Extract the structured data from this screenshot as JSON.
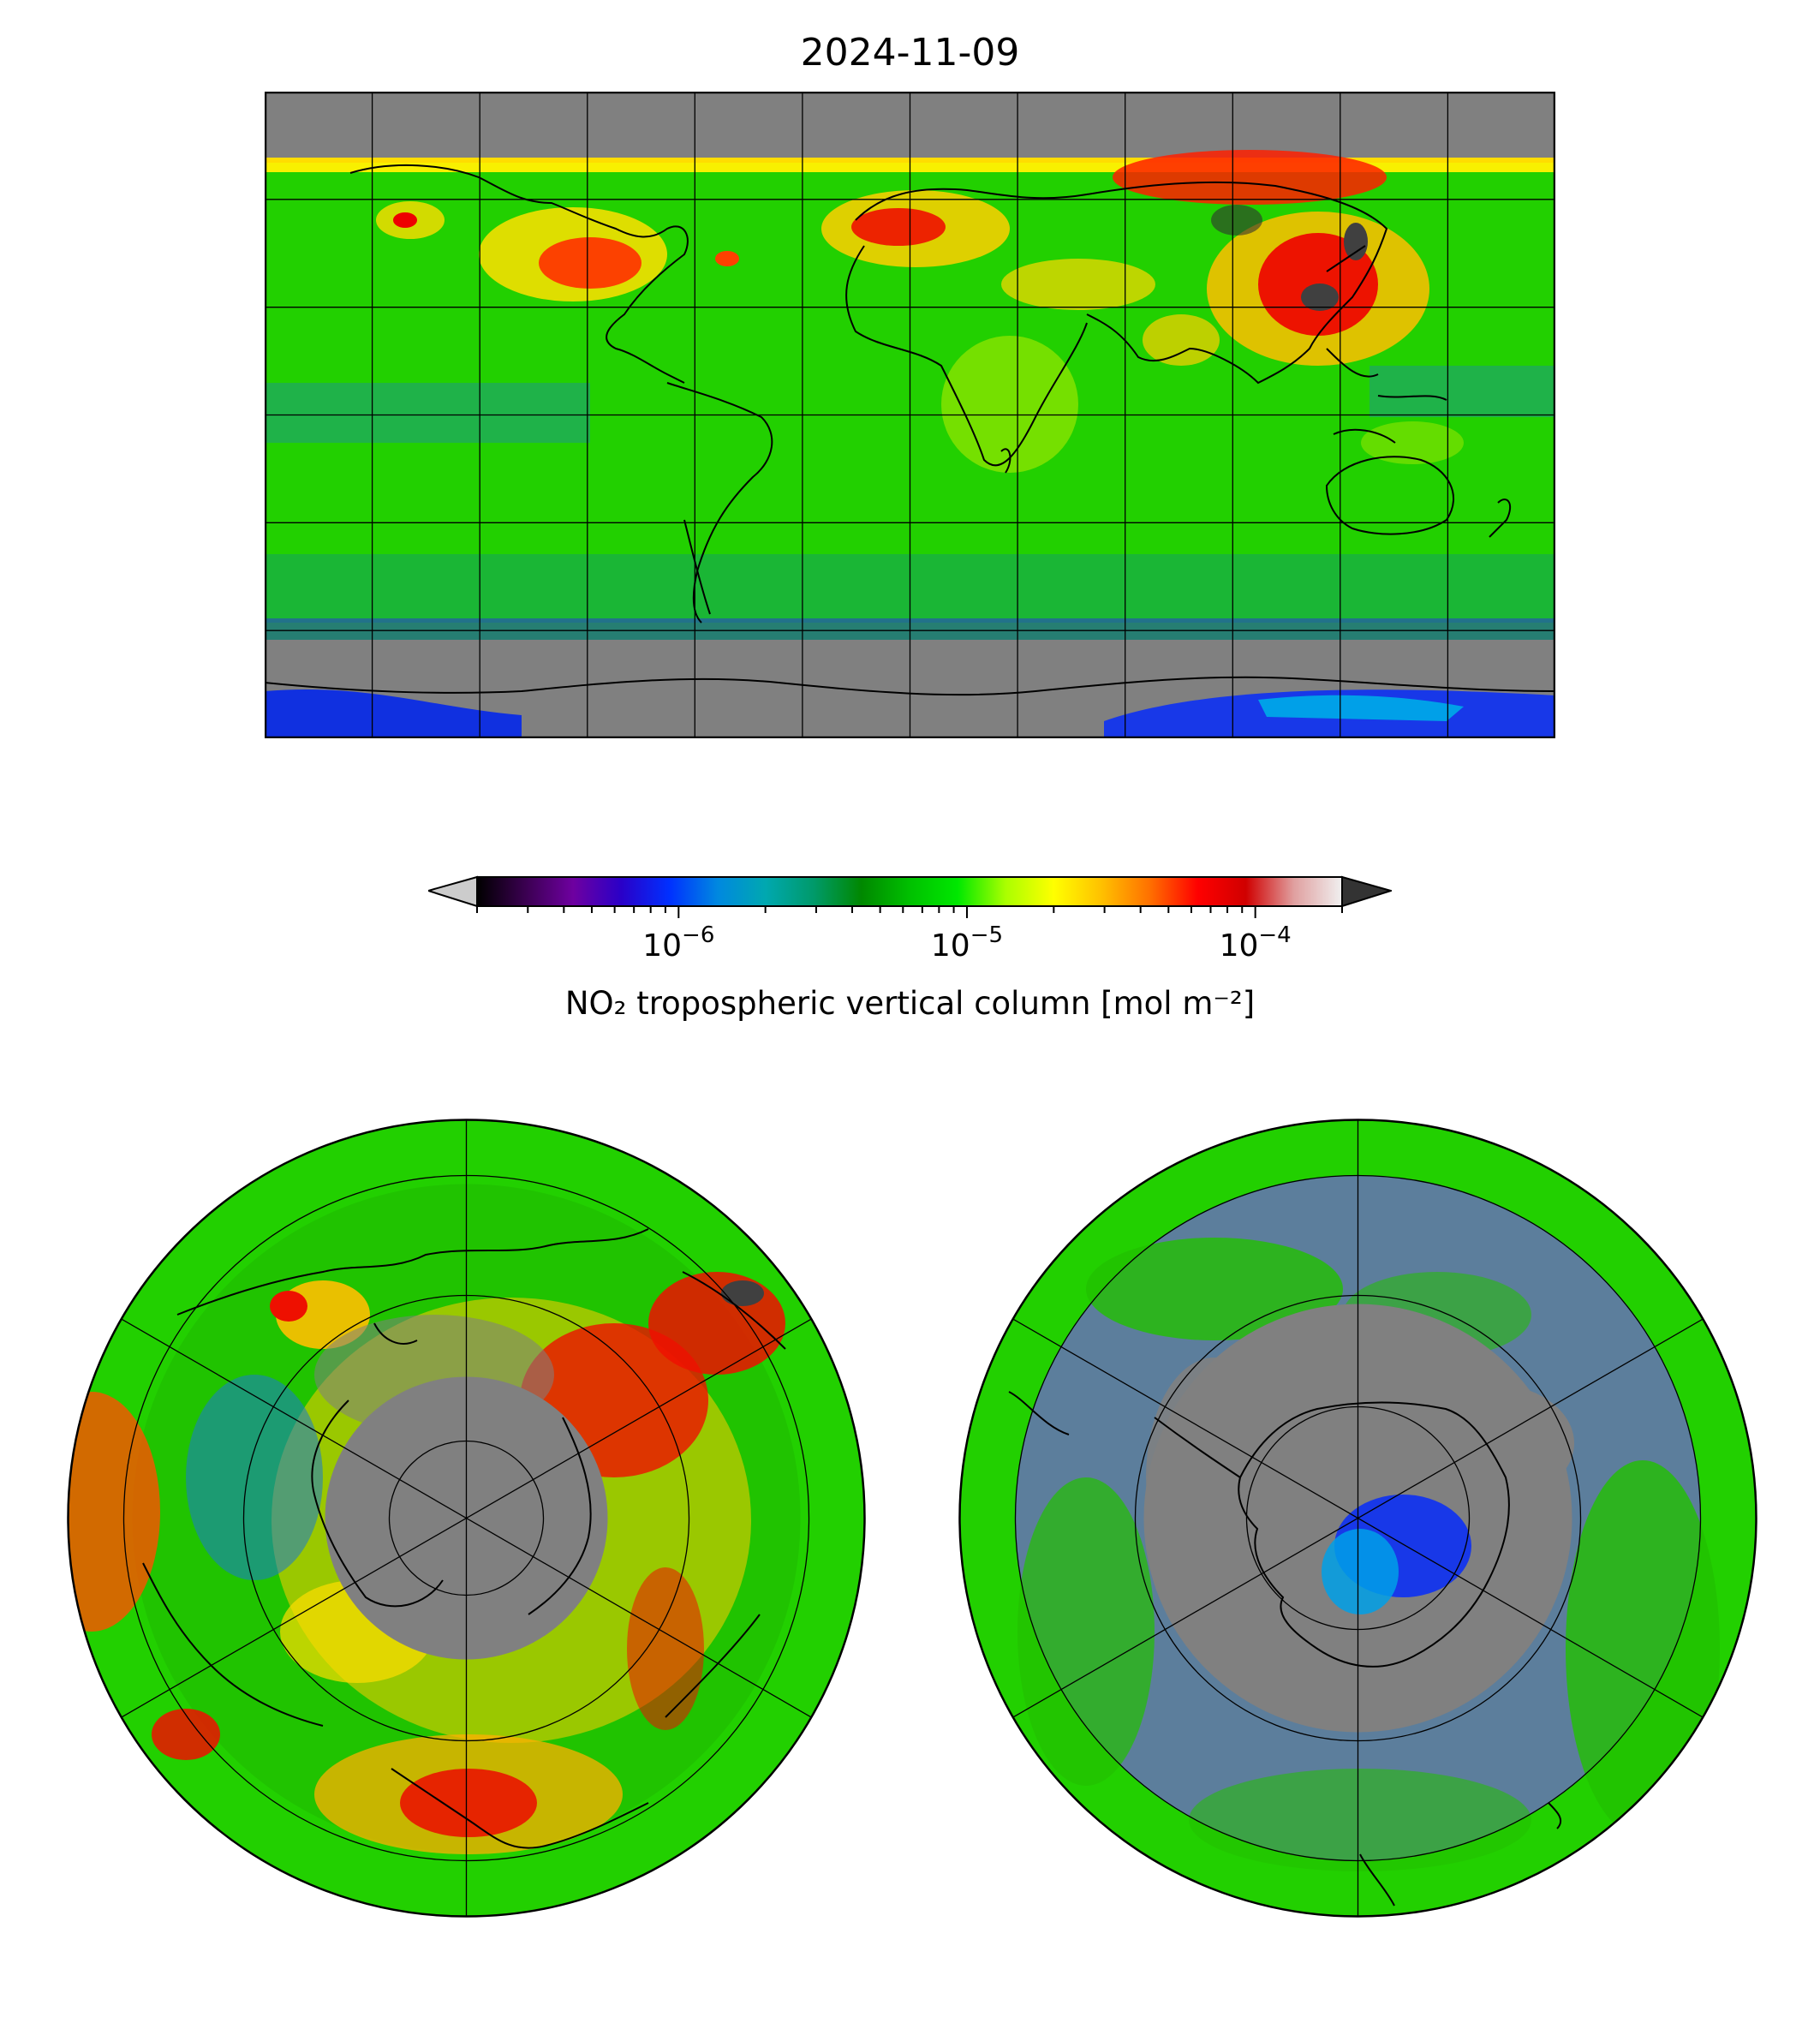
{
  "title": "2024-11-09",
  "colorbar": {
    "label": "NO₂ tropospheric vertical column [mol m⁻²]",
    "scale": "log",
    "range": [
      2e-07,
      0.0002
    ],
    "extend": "both",
    "ticks": [
      {
        "base": "10",
        "exp": "−6",
        "value": 1e-06
      },
      {
        "base": "10",
        "exp": "−5",
        "value": 1e-05
      },
      {
        "base": "10",
        "exp": "−4",
        "value": 0.0001
      }
    ],
    "colors": [
      "#000000",
      "#3a0050",
      "#6e00a0",
      "#2a00c8",
      "#0030ff",
      "#0088e0",
      "#00a8b0",
      "#009a6a",
      "#008800",
      "#00c000",
      "#00e800",
      "#aaff00",
      "#ffff00",
      "#ffc000",
      "#ff7000",
      "#ff0000",
      "#d00000",
      "#e0a0a0",
      "#f0f0f0"
    ],
    "under_color": "#cccccc",
    "over_color": "#333333",
    "missing_color": "#808080"
  },
  "maps": {
    "world": {
      "projection": "PlateCarree",
      "gridlines": true
    },
    "north": {
      "projection": "NorthPolarStereo",
      "gridlines": true
    },
    "south": {
      "projection": "SouthPolarStereo",
      "gridlines": true
    }
  }
}
